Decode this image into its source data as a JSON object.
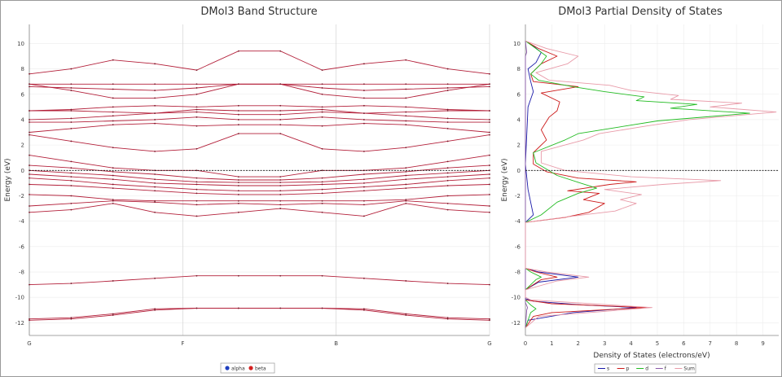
{
  "chart_data": [
    {
      "type": "line",
      "title": "DMol3 Band Structure",
      "xlabel": "",
      "ylabel": "Energy (eV)",
      "ylim": [
        -13,
        11.5
      ],
      "yticks": [
        10,
        8,
        6,
        4,
        2,
        0,
        -2,
        -4,
        -6,
        -8,
        -10,
        -12
      ],
      "kpoints": [
        "G",
        "F",
        "B",
        "G"
      ],
      "fermi_level": 0,
      "grid": true,
      "legend": {
        "placement": "bottom-center",
        "entries": [
          {
            "name": "alpha",
            "color": "#1f3fbf"
          },
          {
            "name": "beta",
            "color": "#d42020"
          }
        ]
      },
      "band_color": "#b3203a",
      "bands": [
        [
          -11.7,
          -11.6,
          -11.3,
          -10.9,
          -10.85,
          -10.85,
          -10.85,
          -10.85,
          -10.9,
          -11.3,
          -11.6,
          -11.7
        ],
        [
          -11.8,
          -11.7,
          -11.4,
          -11.0,
          -10.85,
          -10.85,
          -10.85,
          -10.85,
          -11.0,
          -11.4,
          -11.7,
          -11.8
        ],
        [
          -9.0,
          -8.9,
          -8.7,
          -8.5,
          -8.3,
          -8.3,
          -8.3,
          -8.3,
          -8.5,
          -8.7,
          -8.9,
          -9.0
        ],
        [
          -3.3,
          -3.1,
          -2.6,
          -3.3,
          -3.6,
          -3.3,
          -3.0,
          -3.3,
          -3.6,
          -2.6,
          -3.1,
          -3.3
        ],
        [
          -2.8,
          -2.6,
          -2.4,
          -2.5,
          -2.7,
          -2.6,
          -2.7,
          -2.6,
          -2.7,
          -2.4,
          -2.6,
          -2.8
        ],
        [
          -1.9,
          -2.0,
          -2.3,
          -2.4,
          -2.4,
          -2.4,
          -2.4,
          -2.4,
          -2.4,
          -2.3,
          -2.0,
          -1.9
        ],
        [
          -1.1,
          -1.2,
          -1.4,
          -1.6,
          -1.8,
          -1.9,
          -1.9,
          -1.8,
          -1.6,
          -1.4,
          -1.2,
          -1.1
        ],
        [
          -0.6,
          -0.8,
          -1.1,
          -1.3,
          -1.5,
          -1.6,
          -1.6,
          -1.5,
          -1.3,
          -1.1,
          -0.8,
          -0.6
        ],
        [
          -0.3,
          -0.5,
          -0.7,
          -1.0,
          -1.1,
          -1.2,
          -1.2,
          -1.1,
          -1.0,
          -0.7,
          -0.5,
          -0.3
        ],
        [
          0.0,
          -0.2,
          -0.4,
          -0.7,
          -0.9,
          -0.95,
          -0.95,
          -0.9,
          -0.7,
          -0.4,
          -0.2,
          0.0
        ],
        [
          0.4,
          0.2,
          -0.1,
          -0.3,
          -0.6,
          -0.75,
          -0.75,
          -0.6,
          -0.3,
          -0.1,
          0.2,
          0.4
        ],
        [
          1.2,
          0.7,
          0.2,
          0.0,
          0.0,
          -0.5,
          -0.5,
          0.0,
          0.0,
          0.2,
          0.7,
          1.2
        ],
        [
          2.8,
          2.3,
          1.8,
          1.5,
          1.7,
          2.9,
          2.9,
          1.7,
          1.5,
          1.8,
          2.3,
          2.8
        ],
        [
          3.0,
          3.3,
          3.6,
          3.7,
          3.5,
          3.6,
          3.6,
          3.5,
          3.7,
          3.6,
          3.3,
          3.0
        ],
        [
          3.8,
          3.8,
          3.9,
          4.0,
          4.2,
          4.0,
          4.0,
          4.2,
          4.0,
          3.9,
          3.8,
          3.8
        ],
        [
          4.0,
          4.1,
          4.3,
          4.5,
          4.6,
          4.4,
          4.4,
          4.6,
          4.5,
          4.3,
          4.1,
          4.0
        ],
        [
          4.7,
          4.7,
          4.6,
          4.5,
          4.8,
          4.7,
          4.7,
          4.8,
          4.5,
          4.6,
          4.7,
          4.7
        ],
        [
          4.7,
          4.8,
          5.0,
          5.1,
          5.0,
          5.1,
          5.1,
          5.0,
          5.1,
          5.0,
          4.8,
          4.7
        ],
        [
          6.6,
          6.5,
          6.4,
          6.3,
          6.5,
          6.8,
          6.8,
          6.5,
          6.3,
          6.4,
          6.5,
          6.6
        ],
        [
          6.8,
          6.8,
          6.8,
          6.8,
          6.8,
          6.8,
          6.8,
          6.8,
          6.8,
          6.8,
          6.8,
          6.8
        ],
        [
          6.8,
          6.3,
          5.7,
          5.7,
          6.0,
          6.8,
          6.8,
          6.0,
          5.7,
          5.7,
          6.3,
          6.8
        ],
        [
          7.6,
          8.0,
          8.7,
          8.4,
          7.9,
          9.4,
          9.4,
          7.9,
          8.4,
          8.7,
          8.0,
          7.6
        ]
      ]
    },
    {
      "type": "line",
      "title": "DMol3 Partial  Density of States",
      "xlabel": "Density of States (electrons/eV)",
      "ylabel": "Energy (eV)",
      "xlim": [
        0,
        9.6
      ],
      "xticks": [
        0,
        1,
        2,
        3,
        4,
        5,
        6,
        7,
        8,
        9
      ],
      "ylim": [
        -13,
        11.5
      ],
      "yticks": [
        10,
        8,
        6,
        4,
        2,
        0,
        -2,
        -4,
        -6,
        -8,
        -10,
        -12
      ],
      "fermi_level": 0,
      "grid": true,
      "legend": {
        "placement": "bottom-center",
        "entries": [
          {
            "name": "s",
            "color": "#1a1aa8"
          },
          {
            "name": "p",
            "color": "#cc1a1a"
          },
          {
            "name": "d",
            "color": "#22bb22"
          },
          {
            "name": "f",
            "color": "#8a5aa8"
          },
          {
            "name": "Sum",
            "color": "#e89aa8"
          }
        ]
      },
      "series": [
        {
          "name": "s",
          "color": "#1a1aa8",
          "points": [
            [
              0,
              -12.4
            ],
            [
              0.1,
              -11.8
            ],
            [
              1.8,
              -11.2
            ],
            [
              4.2,
              -10.8
            ],
            [
              2.2,
              -10.6
            ],
            [
              0.3,
              -10.3
            ],
            [
              0,
              -10.1
            ],
            [
              0,
              -9.4
            ],
            [
              0.5,
              -8.8
            ],
            [
              2.0,
              -8.4
            ],
            [
              0.5,
              -8.0
            ],
            [
              0,
              -7.7
            ],
            [
              0,
              -4.1
            ],
            [
              0.3,
              -3.5
            ],
            [
              0.1,
              -1.5
            ],
            [
              0,
              0.5
            ],
            [
              0.1,
              5.0
            ],
            [
              0.3,
              6.2
            ],
            [
              0.2,
              7.0
            ],
            [
              0.1,
              8.0
            ],
            [
              0.4,
              8.5
            ],
            [
              0.6,
              9.3
            ],
            [
              0.3,
              9.8
            ],
            [
              0,
              10.2
            ]
          ]
        },
        {
          "name": "p",
          "color": "#cc1a1a",
          "points": [
            [
              0,
              -12.4
            ],
            [
              0.3,
              -11.5
            ],
            [
              1.0,
              -11.2
            ],
            [
              4.6,
              -10.8
            ],
            [
              1.0,
              -10.5
            ],
            [
              0,
              -10.2
            ],
            [
              0,
              -9.4
            ],
            [
              0.6,
              -8.6
            ],
            [
              1.2,
              -8.4
            ],
            [
              0.4,
              -8.0
            ],
            [
              0,
              -7.7
            ],
            [
              0,
              -4.1
            ],
            [
              1.5,
              -3.7
            ],
            [
              2.4,
              -3.3
            ],
            [
              3.0,
              -2.6
            ],
            [
              2.2,
              -2.3
            ],
            [
              2.8,
              -1.8
            ],
            [
              1.6,
              -1.6
            ],
            [
              3.2,
              -1.1
            ],
            [
              4.2,
              -0.9
            ],
            [
              2.0,
              -0.6
            ],
            [
              0.8,
              -0.1
            ],
            [
              0.3,
              0.5
            ],
            [
              0.3,
              1.4
            ],
            [
              0.8,
              2.4
            ],
            [
              0.6,
              3.2
            ],
            [
              0.9,
              4.2
            ],
            [
              1.2,
              4.7
            ],
            [
              1.3,
              5.4
            ],
            [
              0.6,
              6.1
            ],
            [
              2.0,
              6.6
            ],
            [
              0.3,
              7.0
            ],
            [
              0.2,
              7.6
            ],
            [
              0.6,
              8.4
            ],
            [
              1.2,
              9.0
            ],
            [
              0.5,
              9.6
            ],
            [
              0,
              10.2
            ]
          ]
        },
        {
          "name": "d",
          "color": "#22bb22",
          "points": [
            [
              0,
              -12.4
            ],
            [
              0.2,
              -11.2
            ],
            [
              0.4,
              -10.9
            ],
            [
              0.2,
              -10.6
            ],
            [
              0,
              -10.2
            ],
            [
              0,
              -9.4
            ],
            [
              0.4,
              -8.6
            ],
            [
              0.6,
              -8.4
            ],
            [
              0.2,
              -8.0
            ],
            [
              0,
              -7.7
            ],
            [
              0,
              -4.1
            ],
            [
              0.6,
              -3.5
            ],
            [
              1.2,
              -2.5
            ],
            [
              2.0,
              -1.8
            ],
            [
              2.7,
              -1.4
            ],
            [
              2.1,
              -1.0
            ],
            [
              1.2,
              -0.4
            ],
            [
              0.4,
              0.6
            ],
            [
              0.3,
              1.4
            ],
            [
              1.5,
              2.4
            ],
            [
              2.0,
              2.9
            ],
            [
              3.5,
              3.4
            ],
            [
              5.0,
              3.9
            ],
            [
              8.5,
              4.5
            ],
            [
              5.5,
              4.9
            ],
            [
              6.5,
              5.2
            ],
            [
              4.2,
              5.5
            ],
            [
              4.5,
              5.8
            ],
            [
              3.0,
              6.2
            ],
            [
              1.8,
              6.6
            ],
            [
              0.5,
              7.1
            ],
            [
              0.2,
              7.6
            ],
            [
              0.6,
              8.4
            ],
            [
              0.8,
              9.0
            ],
            [
              0.4,
              9.6
            ],
            [
              0,
              10.2
            ]
          ]
        },
        {
          "name": "f",
          "color": "#8a5aa8",
          "points": [
            [
              0,
              -12.4
            ],
            [
              0.05,
              -11.0
            ],
            [
              0.08,
              -10.8
            ],
            [
              0,
              -10.4
            ],
            [
              0,
              9.0
            ],
            [
              0.05,
              9.3
            ],
            [
              0,
              10.2
            ]
          ]
        },
        {
          "name": "Sum",
          "color": "#e89aa8",
          "points": [
            [
              0,
              -12.4
            ],
            [
              0.5,
              -11.5
            ],
            [
              3.0,
              -11.1
            ],
            [
              4.8,
              -10.8
            ],
            [
              2.5,
              -10.5
            ],
            [
              0.2,
              -10.2
            ],
            [
              0,
              -10.0
            ],
            [
              0,
              -9.4
            ],
            [
              1.2,
              -8.7
            ],
            [
              2.4,
              -8.4
            ],
            [
              0.8,
              -8.0
            ],
            [
              0,
              -7.7
            ],
            [
              0,
              -4.1
            ],
            [
              1.8,
              -3.6
            ],
            [
              3.4,
              -3.2
            ],
            [
              4.2,
              -2.6
            ],
            [
              3.6,
              -2.3
            ],
            [
              4.4,
              -1.9
            ],
            [
              3.0,
              -1.5
            ],
            [
              5.2,
              -1.1
            ],
            [
              7.4,
              -0.8
            ],
            [
              4.0,
              -0.5
            ],
            [
              1.5,
              0.0
            ],
            [
              0.6,
              0.6
            ],
            [
              0.6,
              1.5
            ],
            [
              2.2,
              2.4
            ],
            [
              2.8,
              2.9
            ],
            [
              4.6,
              3.5
            ],
            [
              6.2,
              4.0
            ],
            [
              9.5,
              4.6
            ],
            [
              7.0,
              5.0
            ],
            [
              8.2,
              5.3
            ],
            [
              5.5,
              5.6
            ],
            [
              5.8,
              5.9
            ],
            [
              4.0,
              6.3
            ],
            [
              3.2,
              6.7
            ],
            [
              0.9,
              7.1
            ],
            [
              0.4,
              7.7
            ],
            [
              1.6,
              8.4
            ],
            [
              2.0,
              9.0
            ],
            [
              0.8,
              9.6
            ],
            [
              0,
              10.2
            ]
          ]
        }
      ]
    }
  ]
}
